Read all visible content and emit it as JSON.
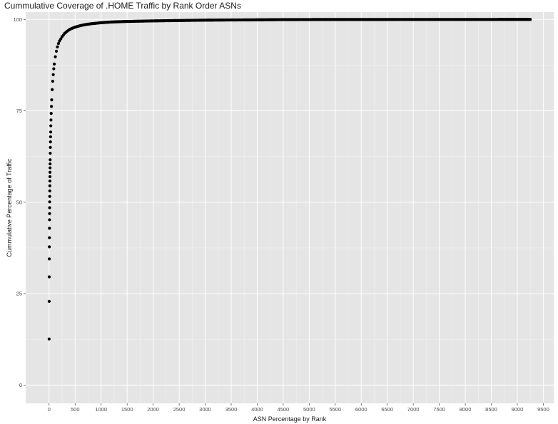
{
  "chart_data": {
    "type": "scatter",
    "title": "Cummulative Coverage of .HOME Traffic by Rank Order ASNs",
    "xlabel": "ASN Percentage by Rank",
    "ylabel": "Cummulative Percentage of Traffic",
    "xlim": [
      -450,
      9700
    ],
    "ylim": [
      -5,
      102
    ],
    "x_ticks": [
      0,
      500,
      1000,
      1500,
      2000,
      2500,
      3000,
      3500,
      4000,
      4500,
      5000,
      5500,
      6000,
      6500,
      7000,
      7500,
      8000,
      8500,
      9000,
      9500
    ],
    "y_ticks": [
      0,
      25,
      50,
      75,
      100
    ],
    "grid": true,
    "legend": "none",
    "marker_color": "#000000",
    "panel_color": "#e5e5e5",
    "series": [
      {
        "points": [
          [
            1,
            12.6
          ],
          [
            2,
            22.9
          ],
          [
            3,
            29.6
          ],
          [
            4,
            34.5
          ],
          [
            5,
            37.8
          ],
          [
            6,
            40.3
          ],
          [
            7,
            42.9
          ],
          [
            8,
            45.2
          ],
          [
            9,
            46.9
          ],
          [
            10,
            48.5
          ],
          [
            11,
            50.1
          ],
          [
            12,
            51.6
          ],
          [
            13,
            53.1
          ],
          [
            14,
            54.5
          ],
          [
            15,
            55.8
          ],
          [
            16,
            57.0
          ],
          [
            17,
            58.2
          ],
          [
            18,
            59.4
          ],
          [
            19,
            60.5
          ],
          [
            20,
            61.6
          ],
          [
            22,
            63.4
          ],
          [
            24,
            65.0
          ],
          [
            26,
            66.5
          ],
          [
            28,
            67.9
          ],
          [
            30,
            69.2
          ],
          [
            33,
            70.9
          ],
          [
            36,
            72.5
          ],
          [
            40,
            74.3
          ],
          [
            45,
            76.2
          ],
          [
            50,
            78.0
          ],
          [
            60,
            80.8
          ],
          [
            70,
            83.1
          ],
          [
            80,
            84.9
          ],
          [
            90,
            86.5
          ],
          [
            100,
            87.8
          ],
          [
            120,
            89.8
          ],
          [
            140,
            91.3
          ],
          [
            160,
            92.5
          ],
          [
            180,
            93.4
          ],
          [
            200,
            94.1
          ],
          [
            250,
            95.3
          ],
          [
            300,
            96.2
          ],
          [
            350,
            96.8
          ],
          [
            400,
            97.3
          ],
          [
            500,
            97.9
          ],
          [
            600,
            98.3
          ],
          [
            700,
            98.6
          ],
          [
            800,
            98.8
          ],
          [
            1000,
            99.1
          ],
          [
            1200,
            99.3
          ],
          [
            1500,
            99.45
          ],
          [
            2000,
            99.6
          ],
          [
            2500,
            99.7
          ],
          [
            3000,
            99.8
          ],
          [
            3500,
            99.85
          ],
          [
            4000,
            99.9
          ],
          [
            4500,
            99.95
          ],
          [
            5000,
            99.97
          ],
          [
            6000,
            99.98
          ],
          [
            7000,
            99.99
          ],
          [
            8000,
            99.99
          ],
          [
            9250,
            100
          ]
        ]
      }
    ]
  }
}
